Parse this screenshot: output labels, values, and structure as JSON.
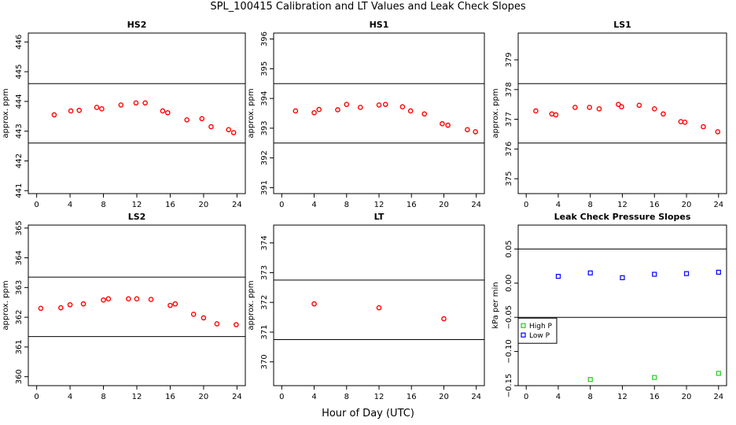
{
  "figure": {
    "title": "SPL_100415  Calibration and LT Values and Leak Check Slopes",
    "xlabel": "Hour of Day (UTC)"
  },
  "chart_data": [
    {
      "type": "scatter",
      "title": "HS2",
      "ylabel": "approx. ppm",
      "xlim": [
        -1,
        25
      ],
      "ylim": [
        440.9,
        446.3
      ],
      "xticks": [
        0,
        4,
        8,
        12,
        16,
        20,
        24
      ],
      "yticks": [
        441,
        442,
        443,
        444,
        445,
        446
      ],
      "hlines": [
        444.6,
        442.6
      ],
      "series": [
        {
          "name": "",
          "color": "#ff0000",
          "marker": "circle",
          "x": [
            2.1,
            4.1,
            5.1,
            7.2,
            7.8,
            10.1,
            11.9,
            13.0,
            15.1,
            15.7,
            18.0,
            19.8,
            20.9,
            23.0,
            23.6
          ],
          "y": [
            443.55,
            443.68,
            443.7,
            443.8,
            443.75,
            443.88,
            443.95,
            443.95,
            443.68,
            443.62,
            443.38,
            443.42,
            443.15,
            443.05,
            442.95
          ]
        }
      ]
    },
    {
      "type": "scatter",
      "title": "HS1",
      "ylabel": "approx. ppm",
      "xlim": [
        -1,
        25
      ],
      "ylim": [
        390.8,
        396.2
      ],
      "xticks": [
        0,
        4,
        8,
        12,
        16,
        20,
        24
      ],
      "yticks": [
        391,
        392,
        393,
        394,
        395,
        396
      ],
      "hlines": [
        394.5,
        392.5
      ],
      "series": [
        {
          "name": "",
          "color": "#ff0000",
          "marker": "circle",
          "x": [
            1.7,
            4.0,
            4.6,
            6.9,
            8.0,
            9.7,
            12.0,
            12.8,
            14.9,
            15.9,
            17.6,
            19.8,
            20.5,
            22.9,
            23.9
          ],
          "y": [
            393.58,
            393.52,
            393.63,
            393.62,
            393.8,
            393.7,
            393.78,
            393.8,
            393.72,
            393.58,
            393.48,
            393.15,
            393.1,
            392.95,
            392.88
          ]
        }
      ]
    },
    {
      "type": "scatter",
      "title": "LS1",
      "ylabel": "approx. ppm",
      "xlim": [
        -1,
        25
      ],
      "ylim": [
        374.5,
        379.9
      ],
      "xticks": [
        0,
        4,
        8,
        12,
        16,
        20,
        24
      ],
      "yticks": [
        375,
        376,
        377,
        378,
        379
      ],
      "hlines": [
        378.2,
        376.2
      ],
      "series": [
        {
          "name": "",
          "color": "#ff0000",
          "marker": "circle",
          "x": [
            1.2,
            3.2,
            3.7,
            6.1,
            7.9,
            9.1,
            11.5,
            11.9,
            14.1,
            16.0,
            17.1,
            19.3,
            19.8,
            22.1,
            23.9
          ],
          "y": [
            377.28,
            377.18,
            377.15,
            377.4,
            377.4,
            377.35,
            377.5,
            377.42,
            377.47,
            377.35,
            377.18,
            376.92,
            376.9,
            376.75,
            376.58
          ]
        }
      ]
    },
    {
      "type": "scatter",
      "title": "LS2",
      "ylabel": "approx. ppm",
      "xlim": [
        -1,
        25
      ],
      "ylim": [
        359.7,
        365.1
      ],
      "xticks": [
        0,
        4,
        8,
        12,
        16,
        20,
        24
      ],
      "yticks": [
        360,
        361,
        362,
        363,
        364,
        365
      ],
      "hlines": [
        363.35,
        361.35
      ],
      "series": [
        {
          "name": "",
          "color": "#ff0000",
          "marker": "circle",
          "x": [
            0.5,
            2.9,
            4.0,
            5.6,
            8.0,
            8.6,
            11.0,
            12.0,
            13.7,
            16.0,
            16.6,
            18.8,
            20.0,
            21.6,
            23.9
          ],
          "y": [
            362.3,
            362.32,
            362.42,
            362.45,
            362.58,
            362.62,
            362.62,
            362.62,
            362.6,
            362.4,
            362.45,
            362.1,
            361.98,
            361.78,
            361.75
          ]
        }
      ]
    },
    {
      "type": "scatter",
      "title": "LT",
      "ylabel": "approx. ppm",
      "xlim": [
        -1,
        25
      ],
      "ylim": [
        369.2,
        374.6
      ],
      "xticks": [
        0,
        4,
        8,
        12,
        16,
        20,
        24
      ],
      "yticks": [
        370,
        371,
        372,
        373,
        374
      ],
      "hlines": [
        372.75,
        370.75
      ],
      "series": [
        {
          "name": "",
          "color": "#ff0000",
          "marker": "circle",
          "x": [
            4.0,
            12.0,
            20.0
          ],
          "y": [
            371.95,
            371.82,
            371.45
          ]
        }
      ]
    },
    {
      "type": "scatter",
      "title": "Leak Check Pressure Slopes",
      "ylabel": "kPa per min",
      "xlim": [
        -1,
        25
      ],
      "ylim": [
        -0.15,
        0.085
      ],
      "xticks": [
        0,
        4,
        8,
        12,
        16,
        20,
        24
      ],
      "yticks": [
        -0.15,
        -0.1,
        -0.05,
        0.0,
        0.05
      ],
      "ytick_labels": [
        "−0.15",
        "−0.10",
        "−0.05",
        "0.00",
        "0.05"
      ],
      "hlines": [
        0.05,
        -0.05
      ],
      "legend": {
        "placement": "left",
        "entries": [
          "High P",
          "Low P"
        ]
      },
      "series": [
        {
          "name": "High P",
          "color": "#22cc22",
          "marker": "square",
          "x": [
            8,
            16,
            24
          ],
          "y": [
            -0.141,
            -0.138,
            -0.132
          ]
        },
        {
          "name": "Low P",
          "color": "#0000ff",
          "marker": "square",
          "x": [
            4,
            8,
            12,
            16,
            20,
            24
          ],
          "y": [
            0.01,
            0.015,
            0.008,
            0.013,
            0.014,
            0.016
          ]
        }
      ]
    }
  ]
}
